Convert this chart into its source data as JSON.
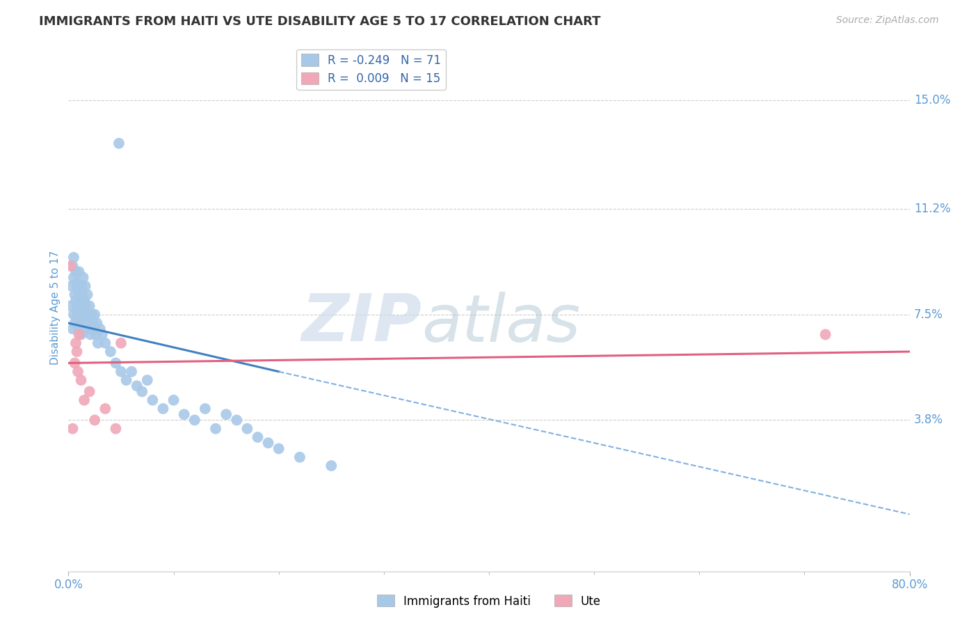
{
  "title": "IMMIGRANTS FROM HAITI VS UTE DISABILITY AGE 5 TO 17 CORRELATION CHART",
  "source_text": "Source: ZipAtlas.com",
  "ylabel": "Disability Age 5 to 17",
  "xlim": [
    0.0,
    80.0
  ],
  "ylim": [
    -1.5,
    17.0
  ],
  "y_tick_positions": [
    3.8,
    7.5,
    11.2,
    15.0
  ],
  "y_tick_labels": [
    "3.8%",
    "7.5%",
    "11.2%",
    "15.0%"
  ],
  "watermark_zip": "ZIP",
  "watermark_atlas": "atlas",
  "legend_haiti_label": "Immigrants from Haiti",
  "legend_ute_label": "Ute",
  "legend_haiti_R": "R = -0.249",
  "legend_haiti_N": "N = 71",
  "legend_ute_R": "R =  0.009",
  "legend_ute_N": "N = 15",
  "haiti_color": "#a8c8e8",
  "ute_color": "#f0a8b8",
  "trendline_haiti_solid_color": "#4080c0",
  "trendline_haiti_dash_color": "#80b0e0",
  "trendline_ute_color": "#e06080",
  "haiti_scatter_x": [
    0.2,
    0.3,
    0.4,
    0.4,
    0.5,
    0.5,
    0.5,
    0.6,
    0.6,
    0.7,
    0.7,
    0.8,
    0.8,
    0.8,
    0.9,
    0.9,
    1.0,
    1.0,
    1.0,
    1.1,
    1.1,
    1.2,
    1.2,
    1.2,
    1.3,
    1.3,
    1.4,
    1.4,
    1.5,
    1.5,
    1.6,
    1.6,
    1.7,
    1.8,
    1.8,
    1.9,
    2.0,
    2.1,
    2.2,
    2.3,
    2.4,
    2.5,
    2.6,
    2.7,
    2.8,
    3.0,
    3.2,
    3.5,
    4.0,
    4.5,
    5.0,
    5.5,
    6.0,
    6.5,
    7.0,
    7.5,
    8.0,
    9.0,
    10.0,
    11.0,
    12.0,
    13.0,
    14.0,
    15.0,
    16.0,
    17.0,
    18.0,
    19.0,
    20.0,
    22.0,
    25.0
  ],
  "haiti_scatter_y": [
    7.8,
    8.5,
    9.2,
    7.0,
    8.8,
    7.5,
    9.5,
    8.2,
    7.2,
    9.0,
    8.0,
    7.8,
    8.6,
    7.4,
    8.4,
    7.6,
    8.2,
    7.0,
    9.0,
    8.0,
    7.3,
    7.8,
    8.5,
    6.8,
    7.5,
    8.2,
    7.0,
    8.8,
    7.4,
    8.0,
    7.8,
    8.5,
    7.2,
    7.0,
    8.2,
    7.5,
    7.8,
    6.8,
    7.5,
    7.2,
    7.0,
    7.5,
    6.8,
    7.2,
    6.5,
    7.0,
    6.8,
    6.5,
    6.2,
    5.8,
    5.5,
    5.2,
    5.5,
    5.0,
    4.8,
    5.2,
    4.5,
    4.2,
    4.5,
    4.0,
    3.8,
    4.2,
    3.5,
    4.0,
    3.8,
    3.5,
    3.2,
    3.0,
    2.8,
    2.5,
    2.2
  ],
  "haiti_outlier_x": 4.8,
  "haiti_outlier_y": 13.5,
  "ute_scatter_x": [
    0.2,
    0.4,
    0.6,
    0.7,
    0.8,
    0.9,
    1.0,
    1.2,
    1.5,
    2.0,
    2.5,
    3.5,
    4.5,
    5.0,
    72.0
  ],
  "ute_scatter_y": [
    9.2,
    3.5,
    5.8,
    6.5,
    6.2,
    5.5,
    6.8,
    5.2,
    4.5,
    4.8,
    3.8,
    4.2,
    3.5,
    6.5,
    6.8
  ],
  "haiti_trend_solid_x0": 0.0,
  "haiti_trend_solid_y0": 7.2,
  "haiti_trend_solid_x1": 20.0,
  "haiti_trend_solid_y1": 5.5,
  "haiti_trend_dash_x0": 20.0,
  "haiti_trend_dash_y0": 5.5,
  "haiti_trend_dash_x1": 80.0,
  "haiti_trend_dash_y1": 0.5,
  "ute_trend_x0": 0.0,
  "ute_trend_y0": 5.8,
  "ute_trend_x1": 80.0,
  "ute_trend_y1": 6.2,
  "background_color": "#ffffff",
  "grid_color": "#cccccc",
  "title_color": "#333333",
  "tick_label_color": "#5b9bd5",
  "ylabel_color": "#5b9bd5",
  "source_color": "#aaaaaa"
}
